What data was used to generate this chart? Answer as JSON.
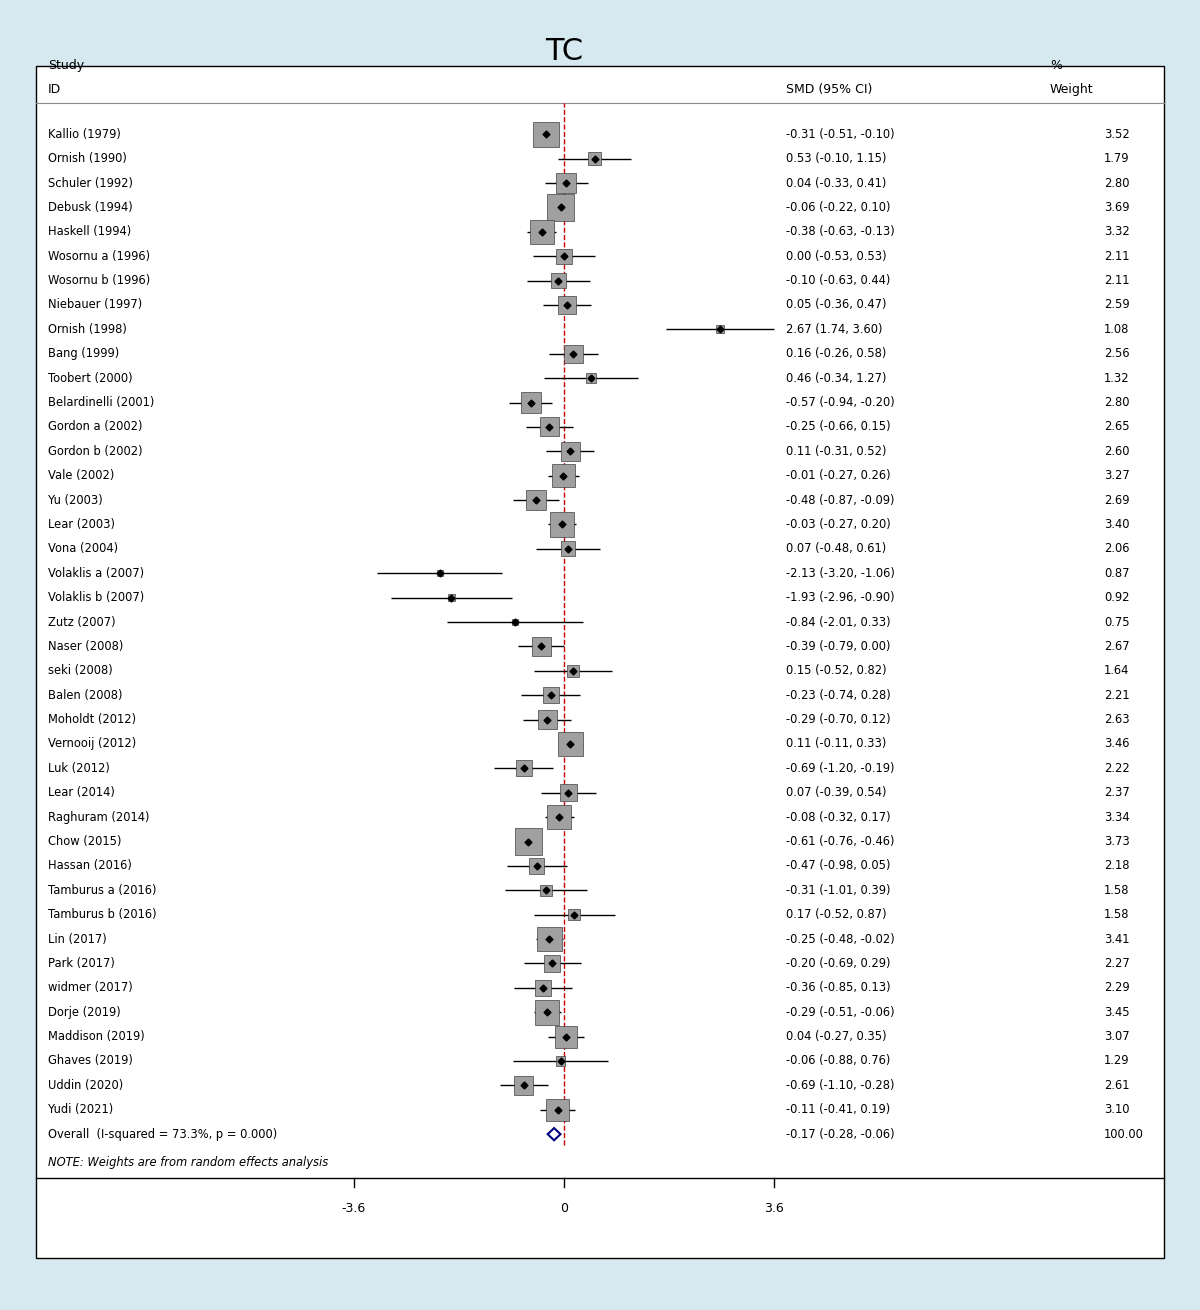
{
  "studies": [
    {
      "label": "Kallio (1979)",
      "smd": -0.31,
      "ci_low": -0.51,
      "ci_high": -0.1,
      "weight": 3.52
    },
    {
      "label": "Ornish (1990)",
      "smd": 0.53,
      "ci_low": -0.1,
      "ci_high": 1.15,
      "weight": 1.79
    },
    {
      "label": "Schuler (1992)",
      "smd": 0.04,
      "ci_low": -0.33,
      "ci_high": 0.41,
      "weight": 2.8
    },
    {
      "label": "Debusk (1994)",
      "smd": -0.06,
      "ci_low": -0.22,
      "ci_high": 0.1,
      "weight": 3.69
    },
    {
      "label": "Haskell (1994)",
      "smd": -0.38,
      "ci_low": -0.63,
      "ci_high": -0.13,
      "weight": 3.32
    },
    {
      "label": "Wosornu a (1996)",
      "smd": 0.0,
      "ci_low": -0.53,
      "ci_high": 0.53,
      "weight": 2.11
    },
    {
      "label": "Wosornu b (1996)",
      "smd": -0.1,
      "ci_low": -0.63,
      "ci_high": 0.44,
      "weight": 2.11
    },
    {
      "label": "Niebauer (1997)",
      "smd": 0.05,
      "ci_low": -0.36,
      "ci_high": 0.47,
      "weight": 2.59
    },
    {
      "label": "Ornish (1998)",
      "smd": 2.67,
      "ci_low": 1.74,
      "ci_high": 3.6,
      "weight": 1.08
    },
    {
      "label": "Bang (1999)",
      "smd": 0.16,
      "ci_low": -0.26,
      "ci_high": 0.58,
      "weight": 2.56
    },
    {
      "label": "Toobert (2000)",
      "smd": 0.46,
      "ci_low": -0.34,
      "ci_high": 1.27,
      "weight": 1.32
    },
    {
      "label": "Belardinelli (2001)",
      "smd": -0.57,
      "ci_low": -0.94,
      "ci_high": -0.2,
      "weight": 2.8
    },
    {
      "label": "Gordon a (2002)",
      "smd": -0.25,
      "ci_low": -0.66,
      "ci_high": 0.15,
      "weight": 2.65
    },
    {
      "label": "Gordon b (2002)",
      "smd": 0.11,
      "ci_low": -0.31,
      "ci_high": 0.52,
      "weight": 2.6
    },
    {
      "label": "Vale (2002)",
      "smd": -0.01,
      "ci_low": -0.27,
      "ci_high": 0.26,
      "weight": 3.27
    },
    {
      "label": "Yu (2003)",
      "smd": -0.48,
      "ci_low": -0.87,
      "ci_high": -0.09,
      "weight": 2.69
    },
    {
      "label": "Lear (2003)",
      "smd": -0.03,
      "ci_low": -0.27,
      "ci_high": 0.2,
      "weight": 3.4
    },
    {
      "label": "Vona (2004)",
      "smd": 0.07,
      "ci_low": -0.48,
      "ci_high": 0.61,
      "weight": 2.06
    },
    {
      "label": "Volaklis a (2007)",
      "smd": -2.13,
      "ci_low": -3.2,
      "ci_high": -1.06,
      "weight": 0.87
    },
    {
      "label": "Volaklis b (2007)",
      "smd": -1.93,
      "ci_low": -2.96,
      "ci_high": -0.9,
      "weight": 0.92
    },
    {
      "label": "Zutz (2007)",
      "smd": -0.84,
      "ci_low": -2.01,
      "ci_high": 0.33,
      "weight": 0.75
    },
    {
      "label": "Naser (2008)",
      "smd": -0.39,
      "ci_low": -0.79,
      "ci_high": 0.0,
      "weight": 2.67
    },
    {
      "label": "seki (2008)",
      "smd": 0.15,
      "ci_low": -0.52,
      "ci_high": 0.82,
      "weight": 1.64
    },
    {
      "label": "Balen (2008)",
      "smd": -0.23,
      "ci_low": -0.74,
      "ci_high": 0.28,
      "weight": 2.21
    },
    {
      "label": "Moholdt (2012)",
      "smd": -0.29,
      "ci_low": -0.7,
      "ci_high": 0.12,
      "weight": 2.63
    },
    {
      "label": "Vernooij (2012)",
      "smd": 0.11,
      "ci_low": -0.11,
      "ci_high": 0.33,
      "weight": 3.46
    },
    {
      "label": "Luk (2012)",
      "smd": -0.69,
      "ci_low": -1.2,
      "ci_high": -0.19,
      "weight": 2.22
    },
    {
      "label": "Lear (2014)",
      "smd": 0.07,
      "ci_low": -0.39,
      "ci_high": 0.54,
      "weight": 2.37
    },
    {
      "label": "Raghuram (2014)",
      "smd": -0.08,
      "ci_low": -0.32,
      "ci_high": 0.17,
      "weight": 3.34
    },
    {
      "label": "Chow (2015)",
      "smd": -0.61,
      "ci_low": -0.76,
      "ci_high": -0.46,
      "weight": 3.73
    },
    {
      "label": "Hassan (2016)",
      "smd": -0.47,
      "ci_low": -0.98,
      "ci_high": 0.05,
      "weight": 2.18
    },
    {
      "label": "Tamburus a (2016)",
      "smd": -0.31,
      "ci_low": -1.01,
      "ci_high": 0.39,
      "weight": 1.58
    },
    {
      "label": "Tamburus b (2016)",
      "smd": 0.17,
      "ci_low": -0.52,
      "ci_high": 0.87,
      "weight": 1.58
    },
    {
      "label": "Lin (2017)",
      "smd": -0.25,
      "ci_low": -0.48,
      "ci_high": -0.02,
      "weight": 3.41
    },
    {
      "label": "Park (2017)",
      "smd": -0.2,
      "ci_low": -0.69,
      "ci_high": 0.29,
      "weight": 2.27
    },
    {
      "label": "widmer (2017)",
      "smd": -0.36,
      "ci_low": -0.85,
      "ci_high": 0.13,
      "weight": 2.29
    },
    {
      "label": "Dorje (2019)",
      "smd": -0.29,
      "ci_low": -0.51,
      "ci_high": -0.06,
      "weight": 3.45
    },
    {
      "label": "Maddison (2019)",
      "smd": 0.04,
      "ci_low": -0.27,
      "ci_high": 0.35,
      "weight": 3.07
    },
    {
      "label": "Ghaves (2019)",
      "smd": -0.06,
      "ci_low": -0.88,
      "ci_high": 0.76,
      "weight": 1.29
    },
    {
      "label": "Uddin (2020)",
      "smd": -0.69,
      "ci_low": -1.1,
      "ci_high": -0.28,
      "weight": 2.61
    },
    {
      "label": "Yudi (2021)",
      "smd": -0.11,
      "ci_low": -0.41,
      "ci_high": 0.19,
      "weight": 3.1
    }
  ],
  "overall": {
    "label": "Overall  (I-squared = 73.3%, p = 0.000)",
    "smd": -0.17,
    "ci_low": -0.28,
    "ci_high": -0.06
  },
  "note": "NOTE: Weights are from random effects analysis",
  "title": "TC",
  "xlim": [
    -3.6,
    3.6
  ],
  "xticks": [
    -3.6,
    0,
    3.6
  ],
  "background_color": "#d6e8f0",
  "plot_bg_color": "#ffffff",
  "ref_line_color": "#cc0000",
  "overall_color": "#000080"
}
